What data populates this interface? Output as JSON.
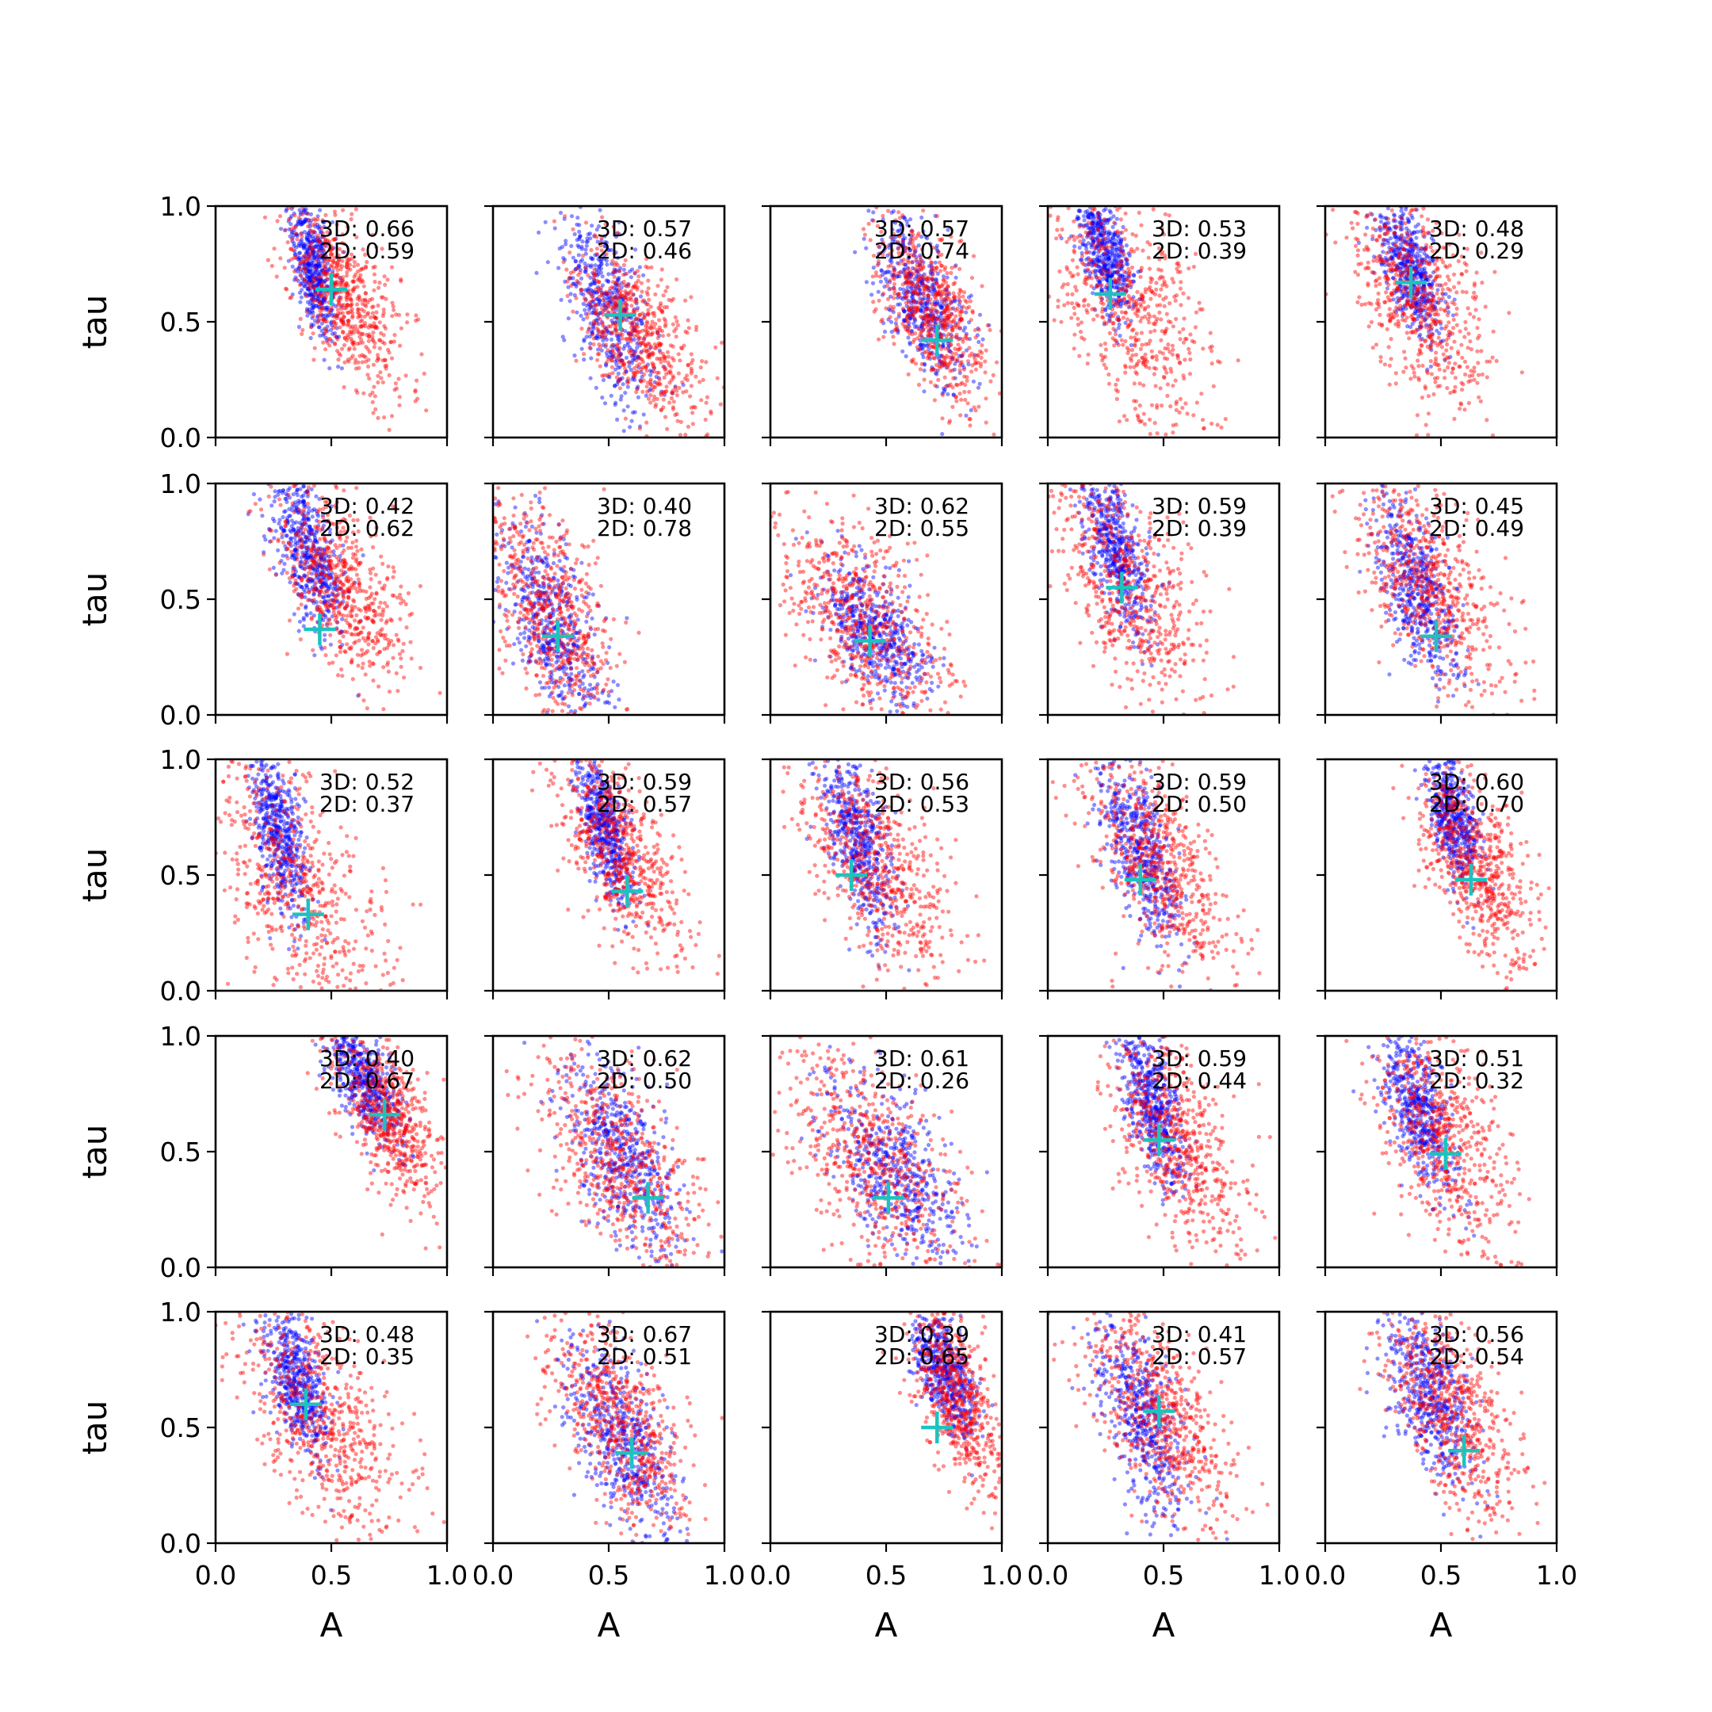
{
  "chart_data": {
    "type": "scatter",
    "layout": "5x5 grid of small scatter panels",
    "xlabel": "A",
    "ylabel": "tau",
    "xlim": [
      0,
      1
    ],
    "ylim": [
      0,
      1
    ],
    "xticks": [
      "0.0",
      "0.5",
      "1.0"
    ],
    "yticks": [
      "0.0",
      "0.5",
      "1.0"
    ],
    "series_colors": {
      "blue": "#0000ff",
      "red": "#ff0000",
      "marker": "#1cc3bd"
    },
    "panels": [
      {
        "row": 0,
        "col": 0,
        "label_3d": "3D: 0.66",
        "label_2d": "2D: 0.59",
        "marker": [
          0.5,
          0.64
        ],
        "blue_cloud": {
          "a": 0.42,
          "t": 0.75,
          "sa": 0.05,
          "st": 0.16
        },
        "red_cloud": {
          "a": 0.55,
          "t": 0.6,
          "sa": 0.13,
          "st": 0.2
        }
      },
      {
        "row": 0,
        "col": 1,
        "label_3d": "3D: 0.57",
        "label_2d": "2D: 0.46",
        "marker": [
          0.55,
          0.53
        ],
        "blue_cloud": {
          "a": 0.5,
          "t": 0.55,
          "sa": 0.1,
          "st": 0.22
        },
        "red_cloud": {
          "a": 0.62,
          "t": 0.45,
          "sa": 0.14,
          "st": 0.2
        }
      },
      {
        "row": 0,
        "col": 2,
        "label_3d": "3D: 0.57",
        "label_2d": "2D: 0.74",
        "marker": [
          0.72,
          0.42
        ],
        "blue_cloud": {
          "a": 0.65,
          "t": 0.6,
          "sa": 0.1,
          "st": 0.18
        },
        "red_cloud": {
          "a": 0.7,
          "t": 0.55,
          "sa": 0.12,
          "st": 0.2
        }
      },
      {
        "row": 0,
        "col": 3,
        "label_3d": "3D: 0.53",
        "label_2d": "2D: 0.39",
        "marker": [
          0.27,
          0.62
        ],
        "blue_cloud": {
          "a": 0.25,
          "t": 0.8,
          "sa": 0.06,
          "st": 0.15
        },
        "red_cloud": {
          "a": 0.35,
          "t": 0.55,
          "sa": 0.2,
          "st": 0.3
        }
      },
      {
        "row": 0,
        "col": 4,
        "label_3d": "3D: 0.48",
        "label_2d": "2D: 0.29",
        "marker": [
          0.37,
          0.67
        ],
        "blue_cloud": {
          "a": 0.37,
          "t": 0.72,
          "sa": 0.07,
          "st": 0.15
        },
        "red_cloud": {
          "a": 0.4,
          "t": 0.6,
          "sa": 0.15,
          "st": 0.25
        }
      },
      {
        "row": 1,
        "col": 0,
        "label_3d": "3D: 0.42",
        "label_2d": "2D: 0.62",
        "marker": [
          0.45,
          0.37
        ],
        "blue_cloud": {
          "a": 0.4,
          "t": 0.7,
          "sa": 0.08,
          "st": 0.18
        },
        "red_cloud": {
          "a": 0.55,
          "t": 0.55,
          "sa": 0.14,
          "st": 0.22
        }
      },
      {
        "row": 1,
        "col": 1,
        "label_3d": "3D: 0.40",
        "label_2d": "2D: 0.78",
        "marker": [
          0.28,
          0.34
        ],
        "blue_cloud": {
          "a": 0.25,
          "t": 0.4,
          "sa": 0.12,
          "st": 0.22
        },
        "red_cloud": {
          "a": 0.25,
          "t": 0.45,
          "sa": 0.15,
          "st": 0.28
        }
      },
      {
        "row": 1,
        "col": 2,
        "label_3d": "3D: 0.62",
        "label_2d": "2D: 0.55",
        "marker": [
          0.43,
          0.32
        ],
        "blue_cloud": {
          "a": 0.45,
          "t": 0.35,
          "sa": 0.12,
          "st": 0.15
        },
        "red_cloud": {
          "a": 0.4,
          "t": 0.4,
          "sa": 0.18,
          "st": 0.24
        }
      },
      {
        "row": 1,
        "col": 3,
        "label_3d": "3D: 0.59",
        "label_2d": "2D: 0.39",
        "marker": [
          0.32,
          0.55
        ],
        "blue_cloud": {
          "a": 0.3,
          "t": 0.7,
          "sa": 0.07,
          "st": 0.18
        },
        "red_cloud": {
          "a": 0.35,
          "t": 0.55,
          "sa": 0.16,
          "st": 0.28
        }
      },
      {
        "row": 1,
        "col": 4,
        "label_3d": "3D: 0.45",
        "label_2d": "2D: 0.49",
        "marker": [
          0.48,
          0.34
        ],
        "blue_cloud": {
          "a": 0.4,
          "t": 0.55,
          "sa": 0.09,
          "st": 0.2
        },
        "red_cloud": {
          "a": 0.45,
          "t": 0.55,
          "sa": 0.16,
          "st": 0.25
        }
      },
      {
        "row": 2,
        "col": 0,
        "label_3d": "3D: 0.52",
        "label_2d": "2D: 0.37",
        "marker": [
          0.4,
          0.33
        ],
        "blue_cloud": {
          "a": 0.27,
          "t": 0.7,
          "sa": 0.06,
          "st": 0.18
        },
        "red_cloud": {
          "a": 0.35,
          "t": 0.45,
          "sa": 0.2,
          "st": 0.3
        }
      },
      {
        "row": 2,
        "col": 1,
        "label_3d": "3D: 0.59",
        "label_2d": "2D: 0.57",
        "marker": [
          0.58,
          0.43
        ],
        "blue_cloud": {
          "a": 0.48,
          "t": 0.7,
          "sa": 0.06,
          "st": 0.16
        },
        "red_cloud": {
          "a": 0.55,
          "t": 0.6,
          "sa": 0.13,
          "st": 0.22
        }
      },
      {
        "row": 2,
        "col": 2,
        "label_3d": "3D: 0.56",
        "label_2d": "2D: 0.53",
        "marker": [
          0.35,
          0.5
        ],
        "blue_cloud": {
          "a": 0.38,
          "t": 0.65,
          "sa": 0.08,
          "st": 0.2
        },
        "red_cloud": {
          "a": 0.45,
          "t": 0.55,
          "sa": 0.18,
          "st": 0.26
        }
      },
      {
        "row": 2,
        "col": 3,
        "label_3d": "3D: 0.59",
        "label_2d": "2D: 0.50",
        "marker": [
          0.4,
          0.48
        ],
        "blue_cloud": {
          "a": 0.4,
          "t": 0.6,
          "sa": 0.09,
          "st": 0.2
        },
        "red_cloud": {
          "a": 0.48,
          "t": 0.55,
          "sa": 0.15,
          "st": 0.24
        }
      },
      {
        "row": 2,
        "col": 4,
        "label_3d": "3D: 0.60",
        "label_2d": "2D: 0.70",
        "marker": [
          0.63,
          0.48
        ],
        "blue_cloud": {
          "a": 0.55,
          "t": 0.75,
          "sa": 0.06,
          "st": 0.15
        },
        "red_cloud": {
          "a": 0.65,
          "t": 0.55,
          "sa": 0.13,
          "st": 0.22
        }
      },
      {
        "row": 3,
        "col": 0,
        "label_3d": "3D: 0.40",
        "label_2d": "2D: 0.67",
        "marker": [
          0.73,
          0.66
        ],
        "blue_cloud": {
          "a": 0.65,
          "t": 0.8,
          "sa": 0.08,
          "st": 0.13
        },
        "red_cloud": {
          "a": 0.75,
          "t": 0.65,
          "sa": 0.12,
          "st": 0.2
        }
      },
      {
        "row": 3,
        "col": 1,
        "label_3d": "3D: 0.62",
        "label_2d": "2D: 0.50",
        "marker": [
          0.67,
          0.3
        ],
        "blue_cloud": {
          "a": 0.55,
          "t": 0.5,
          "sa": 0.12,
          "st": 0.22
        },
        "red_cloud": {
          "a": 0.55,
          "t": 0.45,
          "sa": 0.18,
          "st": 0.25
        }
      },
      {
        "row": 3,
        "col": 2,
        "label_3d": "3D: 0.61",
        "label_2d": "2D: 0.26",
        "marker": [
          0.51,
          0.3
        ],
        "blue_cloud": {
          "a": 0.55,
          "t": 0.4,
          "sa": 0.15,
          "st": 0.2
        },
        "red_cloud": {
          "a": 0.45,
          "t": 0.45,
          "sa": 0.2,
          "st": 0.28
        }
      },
      {
        "row": 3,
        "col": 3,
        "label_3d": "3D: 0.59",
        "label_2d": "2D: 0.44",
        "marker": [
          0.48,
          0.55
        ],
        "blue_cloud": {
          "a": 0.45,
          "t": 0.7,
          "sa": 0.07,
          "st": 0.18
        },
        "red_cloud": {
          "a": 0.55,
          "t": 0.55,
          "sa": 0.15,
          "st": 0.24
        }
      },
      {
        "row": 3,
        "col": 4,
        "label_3d": "3D: 0.51",
        "label_2d": "2D: 0.32",
        "marker": [
          0.52,
          0.49
        ],
        "blue_cloud": {
          "a": 0.4,
          "t": 0.7,
          "sa": 0.08,
          "st": 0.18
        },
        "red_cloud": {
          "a": 0.5,
          "t": 0.55,
          "sa": 0.17,
          "st": 0.26
        }
      },
      {
        "row": 4,
        "col": 0,
        "label_3d": "3D: 0.48",
        "label_2d": "2D: 0.35",
        "marker": [
          0.39,
          0.6
        ],
        "blue_cloud": {
          "a": 0.35,
          "t": 0.7,
          "sa": 0.07,
          "st": 0.16
        },
        "red_cloud": {
          "a": 0.45,
          "t": 0.55,
          "sa": 0.18,
          "st": 0.26
        }
      },
      {
        "row": 4,
        "col": 1,
        "label_3d": "3D: 0.67",
        "label_2d": "2D: 0.51",
        "marker": [
          0.6,
          0.39
        ],
        "blue_cloud": {
          "a": 0.55,
          "t": 0.45,
          "sa": 0.12,
          "st": 0.2
        },
        "red_cloud": {
          "a": 0.55,
          "t": 0.5,
          "sa": 0.16,
          "st": 0.24
        }
      },
      {
        "row": 4,
        "col": 2,
        "label_3d": "3D: 0.39",
        "label_2d": "2D: 0.65",
        "marker": [
          0.72,
          0.5
        ],
        "blue_cloud": {
          "a": 0.75,
          "t": 0.75,
          "sa": 0.07,
          "st": 0.14
        },
        "red_cloud": {
          "a": 0.8,
          "t": 0.65,
          "sa": 0.1,
          "st": 0.22
        }
      },
      {
        "row": 4,
        "col": 3,
        "label_3d": "3D: 0.41",
        "label_2d": "2D: 0.57",
        "marker": [
          0.48,
          0.57
        ],
        "blue_cloud": {
          "a": 0.4,
          "t": 0.55,
          "sa": 0.1,
          "st": 0.22
        },
        "red_cloud": {
          "a": 0.5,
          "t": 0.55,
          "sa": 0.16,
          "st": 0.24
        }
      },
      {
        "row": 4,
        "col": 4,
        "label_3d": "3D: 0.56",
        "label_2d": "2D: 0.54",
        "marker": [
          0.6,
          0.4
        ],
        "blue_cloud": {
          "a": 0.45,
          "t": 0.65,
          "sa": 0.1,
          "st": 0.2
        },
        "red_cloud": {
          "a": 0.55,
          "t": 0.55,
          "sa": 0.15,
          "st": 0.24
        }
      }
    ]
  }
}
